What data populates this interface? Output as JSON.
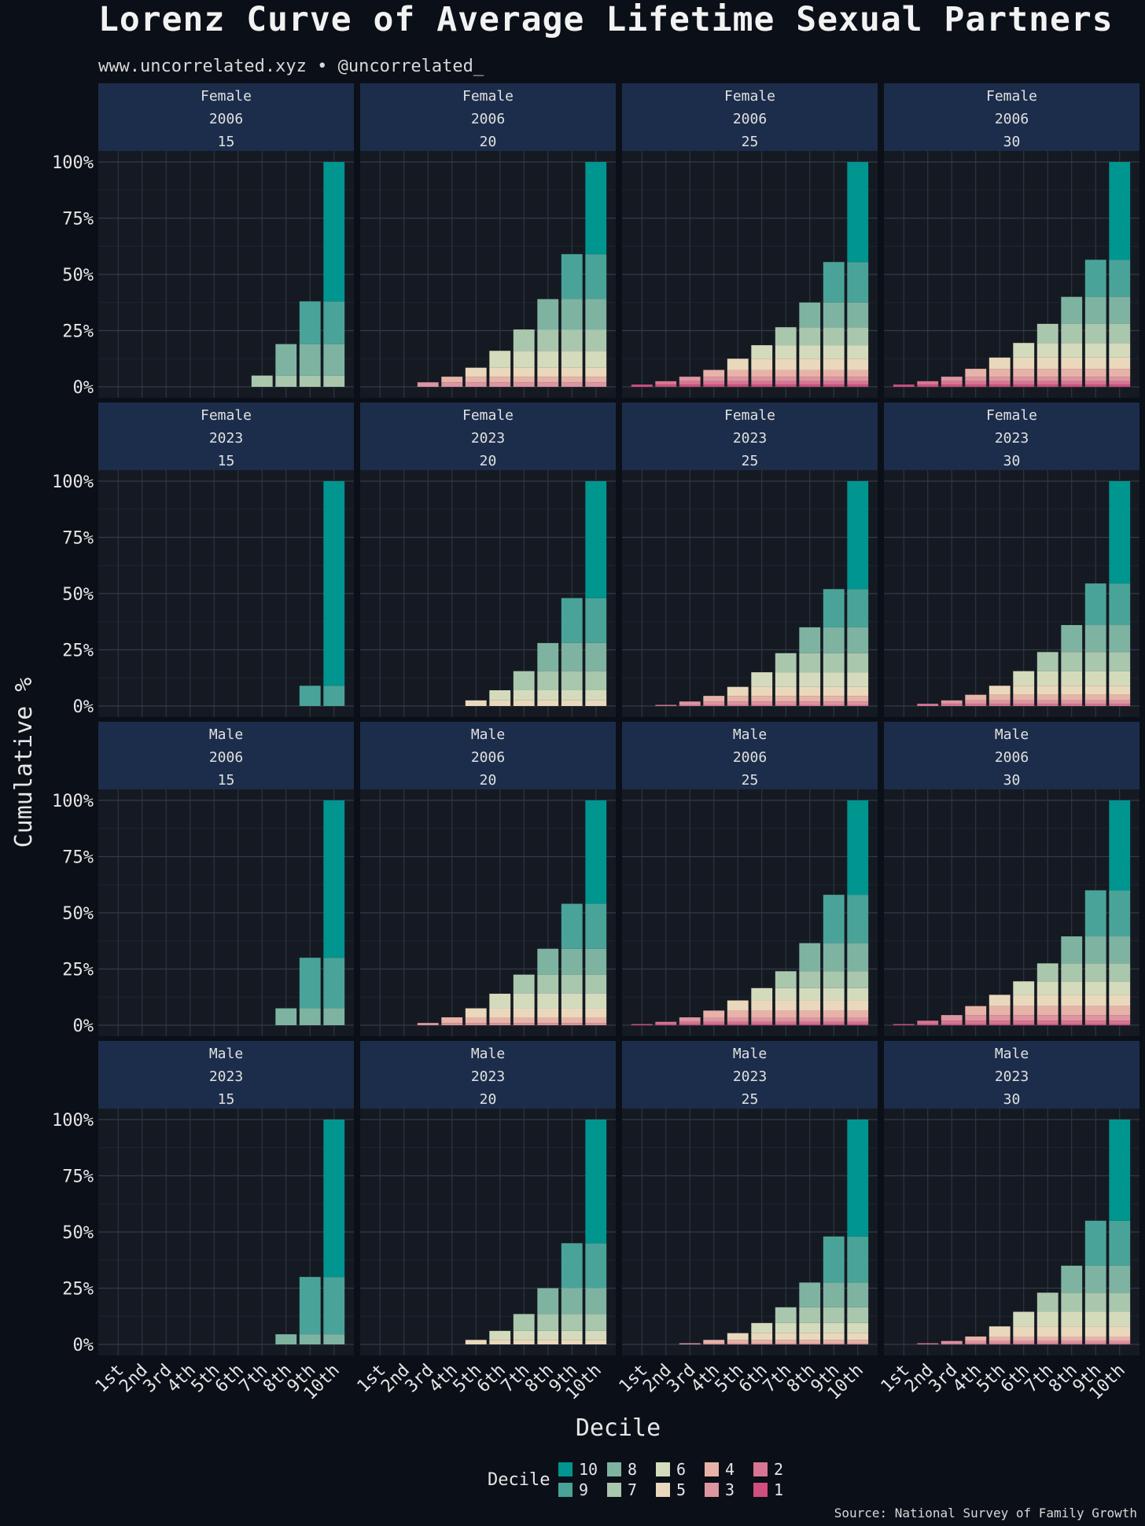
{
  "title": "Lorenz Curve of Average Lifetime Sexual Partners",
  "subtitle": "www.uncorrelated.xyz • @uncorrelated_",
  "source": "Source: National Survey of Family Growth",
  "legend": {
    "title": "Decile",
    "entries": [
      {
        "label": "10",
        "color": "#00958f"
      },
      {
        "label": "9",
        "color": "#4aa399"
      },
      {
        "label": "8",
        "color": "#7eb3a2"
      },
      {
        "label": "7",
        "color": "#a9c7ad"
      },
      {
        "label": "6",
        "color": "#d4dbbc"
      },
      {
        "label": "5",
        "color": "#ead8bd"
      },
      {
        "label": "4",
        "color": "#e7b3a8"
      },
      {
        "label": "3",
        "color": "#dd95a0"
      },
      {
        "label": "2",
        "color": "#d77593"
      },
      {
        "label": "1",
        "color": "#cf4f7e"
      }
    ]
  },
  "colors": {
    "background": "#0b0f17",
    "panel": "#151a22",
    "strip": "#1c2d4b",
    "grid": "#333a45"
  },
  "chart_data": {
    "type": "bar",
    "subtype": "stacked-cumulative",
    "xlabel": "Decile",
    "ylabel": "Cumulative %",
    "categories": [
      "1st",
      "2nd",
      "3rd",
      "4th",
      "5th",
      "6th",
      "7th",
      "8th",
      "9th",
      "10th"
    ],
    "ylim": [
      0,
      100
    ],
    "yticks": [
      "0%",
      "25%",
      "50%",
      "75%",
      "100%"
    ],
    "grid": true,
    "legend_position": "bottom",
    "facets": [
      {
        "strip": [
          "Female",
          "2006",
          "15"
        ],
        "cumulative": [
          0,
          0,
          0,
          0,
          0,
          0,
          5,
          19,
          38,
          100
        ]
      },
      {
        "strip": [
          "Female",
          "2006",
          "20"
        ],
        "cumulative": [
          0,
          0,
          2,
          4.5,
          8.5,
          16,
          25.5,
          39,
          59,
          100
        ]
      },
      {
        "strip": [
          "Female",
          "2006",
          "25"
        ],
        "cumulative": [
          1,
          2.5,
          4.5,
          7.5,
          12.5,
          18.5,
          26.5,
          37.5,
          55.5,
          100
        ]
      },
      {
        "strip": [
          "Female",
          "2006",
          "30"
        ],
        "cumulative": [
          1,
          2.5,
          4.5,
          8,
          13,
          19.5,
          28,
          40,
          56.5,
          100
        ]
      },
      {
        "strip": [
          "Female",
          "2023",
          "15"
        ],
        "cumulative": [
          0,
          0,
          0,
          0,
          0,
          0,
          0,
          0,
          9,
          100
        ]
      },
      {
        "strip": [
          "Female",
          "2023",
          "20"
        ],
        "cumulative": [
          0,
          0,
          0,
          0,
          2.5,
          7,
          15.5,
          28,
          48,
          100
        ]
      },
      {
        "strip": [
          "Female",
          "2023",
          "25"
        ],
        "cumulative": [
          0,
          0.5,
          2,
          4.5,
          8.5,
          15,
          23.5,
          35,
          52,
          100
        ]
      },
      {
        "strip": [
          "Female",
          "2023",
          "30"
        ],
        "cumulative": [
          0,
          1,
          2.5,
          5,
          9,
          15.5,
          24,
          36,
          54.5,
          100
        ]
      },
      {
        "strip": [
          "Male",
          "2006",
          "15"
        ],
        "cumulative": [
          0,
          0,
          0,
          0,
          0,
          0,
          0,
          7.5,
          30,
          100
        ]
      },
      {
        "strip": [
          "Male",
          "2006",
          "20"
        ],
        "cumulative": [
          0,
          0,
          1,
          3.5,
          7.5,
          14,
          22.5,
          34,
          54,
          100
        ]
      },
      {
        "strip": [
          "Male",
          "2006",
          "25"
        ],
        "cumulative": [
          0.5,
          1.5,
          3.5,
          6.5,
          11,
          16.5,
          24,
          36.5,
          58,
          100
        ]
      },
      {
        "strip": [
          "Male",
          "2006",
          "30"
        ],
        "cumulative": [
          0.5,
          2,
          4.5,
          8.5,
          13.5,
          19.5,
          27.5,
          39.5,
          60,
          100
        ]
      },
      {
        "strip": [
          "Male",
          "2023",
          "15"
        ],
        "cumulative": [
          0,
          0,
          0,
          0,
          0,
          0,
          0,
          4.5,
          30,
          100
        ]
      },
      {
        "strip": [
          "Male",
          "2023",
          "20"
        ],
        "cumulative": [
          0,
          0,
          0,
          0,
          2,
          6,
          13.5,
          25,
          45,
          100
        ]
      },
      {
        "strip": [
          "Male",
          "2023",
          "25"
        ],
        "cumulative": [
          0,
          0,
          0.5,
          2,
          5,
          9.5,
          16.5,
          27.5,
          48,
          100
        ]
      },
      {
        "strip": [
          "Male",
          "2023",
          "30"
        ],
        "cumulative": [
          0,
          0.5,
          1.5,
          3.5,
          8,
          14.5,
          23,
          35,
          55,
          100
        ]
      }
    ]
  }
}
